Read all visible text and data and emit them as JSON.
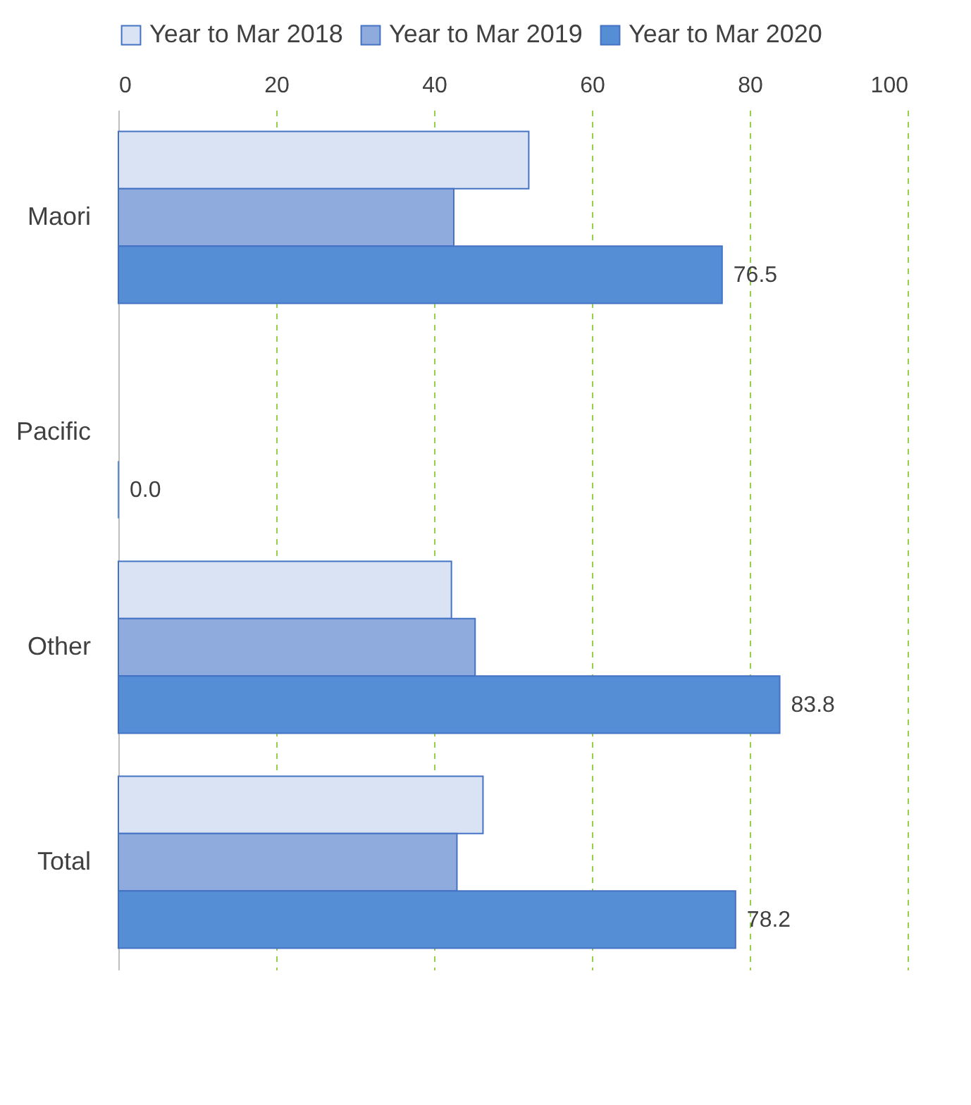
{
  "chart_data": {
    "type": "bar",
    "orientation": "horizontal",
    "categories": [
      "Maori",
      "Pacific",
      "Other",
      "Total"
    ],
    "series": [
      {
        "name": "Year to Mar 2018",
        "color": "#dae3f3",
        "values": [
          52.0,
          null,
          42.2,
          46.2
        ]
      },
      {
        "name": "Year to Mar 2019",
        "color": "#8faadc",
        "values": [
          42.5,
          null,
          45.2,
          42.9
        ]
      },
      {
        "name": "Year to Mar 2020",
        "color": "#558ed5",
        "values": [
          76.5,
          0,
          83.8,
          78.2
        ],
        "value_labels": [
          "76.5",
          "0.0",
          "83.8",
          "78.2"
        ]
      }
    ],
    "xlim": [
      0,
      100
    ],
    "xticks": [
      0,
      20,
      40,
      60,
      80,
      100
    ],
    "grid": "x",
    "legend": "top"
  }
}
